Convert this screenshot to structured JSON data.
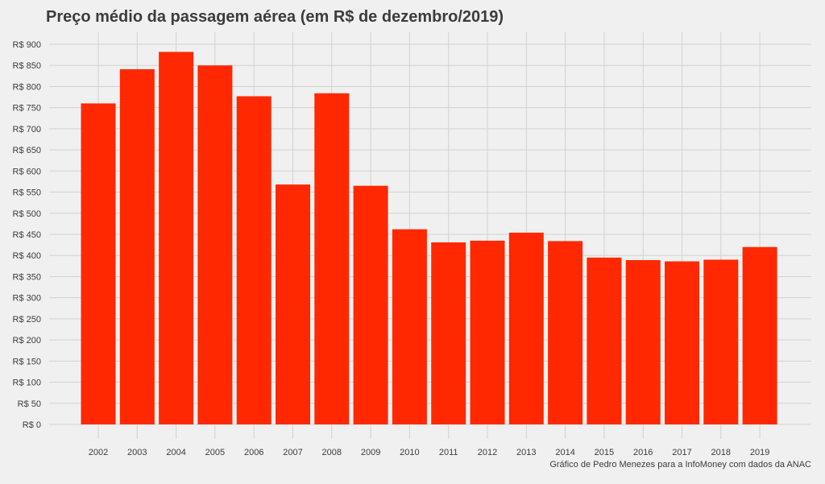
{
  "chart_data": {
    "type": "bar",
    "title": "Preço médio da passagem aérea (em R$ de dezembro/2019)",
    "caption": "Gráfico de Pedro Menezes para a InfoMoney com dados da ANAC",
    "xlabel": "",
    "ylabel": "",
    "ylim": [
      0,
      900
    ],
    "y_ticks": [
      0,
      50,
      100,
      150,
      200,
      250,
      300,
      350,
      400,
      450,
      500,
      550,
      600,
      650,
      700,
      750,
      800,
      850,
      900
    ],
    "y_tick_prefix": "R$ ",
    "grid": true,
    "bar_color": "#ff2800",
    "categories": [
      "2002",
      "2003",
      "2004",
      "2005",
      "2006",
      "2007",
      "2008",
      "2009",
      "2010",
      "2011",
      "2012",
      "2013",
      "2014",
      "2015",
      "2016",
      "2017",
      "2018",
      "2019"
    ],
    "values": [
      760,
      841,
      882,
      850,
      777,
      568,
      784,
      565,
      462,
      431,
      435,
      454,
      434,
      395,
      389,
      386,
      390,
      420
    ]
  }
}
